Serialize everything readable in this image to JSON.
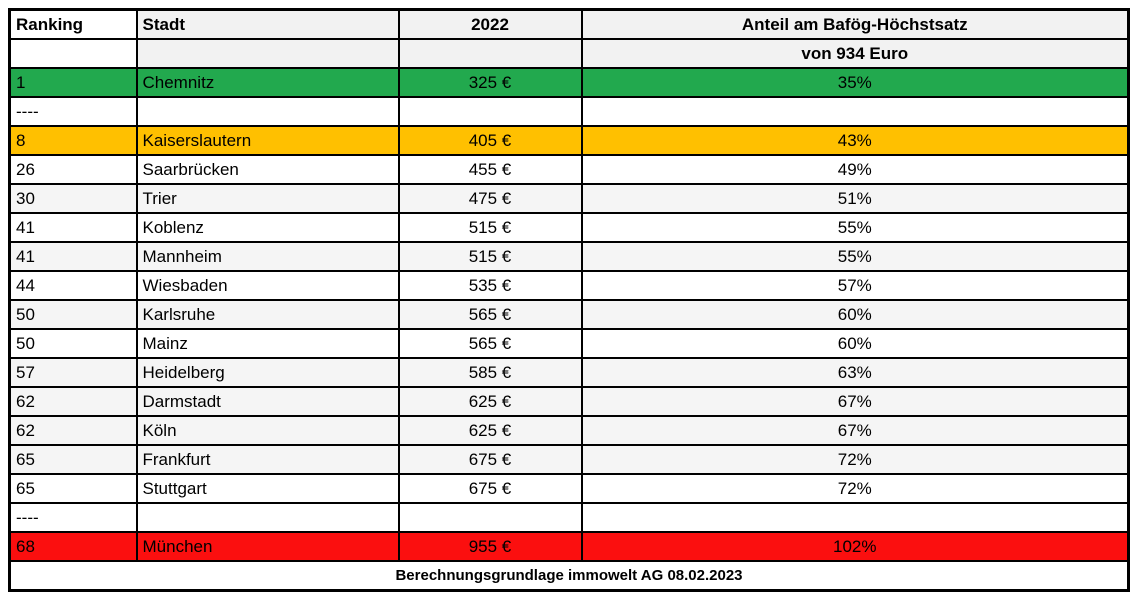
{
  "colors": {
    "green": "#22A94E",
    "orange": "#FFC000",
    "red": "#FB0F0F",
    "shaded": "#F5F5F5",
    "header_shaded": "#F2F2F2",
    "border": "#000000"
  },
  "table": {
    "columns": [
      {
        "key": "ranking",
        "label": "Ranking"
      },
      {
        "key": "stadt",
        "label": "Stadt"
      },
      {
        "key": "rent",
        "label": "2022"
      },
      {
        "key": "share",
        "label": "Anteil am Bafög-Höchstsatz"
      }
    ],
    "subheader_anteil": "von 934 Euro",
    "rows": [
      {
        "ranking": "1",
        "stadt": "Chemnitz",
        "rent": "325 €",
        "share": "35%",
        "highlight": "green"
      },
      {
        "ranking": "----",
        "stadt": "",
        "rent": "",
        "share": ""
      },
      {
        "ranking": "8",
        "stadt": "Kaiserslautern",
        "rent": "405 €",
        "share": "43%",
        "highlight": "orange"
      },
      {
        "ranking": "26",
        "stadt": "Saarbrücken",
        "rent": "455 €",
        "share": "49%"
      },
      {
        "ranking": "30",
        "stadt": "Trier",
        "rent": "475 €",
        "share": "51%",
        "shaded": true
      },
      {
        "ranking": "41",
        "stadt": "Koblenz",
        "rent": "515 €",
        "share": "55%"
      },
      {
        "ranking": "41",
        "stadt": "Mannheim",
        "rent": "515 €",
        "share": "55%",
        "shaded": true
      },
      {
        "ranking": "44",
        "stadt": "Wiesbaden",
        "rent": "535 €",
        "share": "57%"
      },
      {
        "ranking": "50",
        "stadt": "Karlsruhe",
        "rent": "565 €",
        "share": "60%",
        "shaded": true
      },
      {
        "ranking": "50",
        "stadt": "Mainz",
        "rent": "565 €",
        "share": "60%"
      },
      {
        "ranking": "57",
        "stadt": "Heidelberg",
        "rent": "585 €",
        "share": "63%",
        "shaded": true
      },
      {
        "ranking": "62",
        "stadt": "Darmstadt",
        "rent": "625 €",
        "share": "67%",
        "shaded": true
      },
      {
        "ranking": "62",
        "stadt": "Köln",
        "rent": "625 €",
        "share": "67%",
        "shaded": true
      },
      {
        "ranking": "65",
        "stadt": "Frankfurt",
        "rent": "675 €",
        "share": "72%",
        "shaded": true
      },
      {
        "ranking": "65",
        "stadt": "Stuttgart",
        "rent": "675 €",
        "share": "72%"
      },
      {
        "ranking": "----",
        "stadt": "",
        "rent": "",
        "share": ""
      },
      {
        "ranking": "68",
        "stadt": "München",
        "rent": "955 €",
        "share": "102%",
        "highlight": "red"
      }
    ],
    "footer": "Berechnungsgrundlage immowelt AG 08.02.2023"
  },
  "chart_data": {
    "type": "table",
    "title": "Anteil am Bafög-Höchstsatz von 934 Euro",
    "columns": [
      "Ranking",
      "Stadt",
      "2022",
      "Anteil am Bafög-Höchstsatz von 934 Euro"
    ],
    "rows": [
      [
        1,
        "Chemnitz",
        "325 €",
        "35%"
      ],
      [
        8,
        "Kaiserslautern",
        "405 €",
        "43%"
      ],
      [
        26,
        "Saarbrücken",
        "455 €",
        "49%"
      ],
      [
        30,
        "Trier",
        "475 €",
        "51%"
      ],
      [
        41,
        "Koblenz",
        "515 €",
        "55%"
      ],
      [
        41,
        "Mannheim",
        "515 €",
        "55%"
      ],
      [
        44,
        "Wiesbaden",
        "535 €",
        "57%"
      ],
      [
        50,
        "Karlsruhe",
        "565 €",
        "60%"
      ],
      [
        50,
        "Mainz",
        "565 €",
        "60%"
      ],
      [
        57,
        "Heidelberg",
        "585 €",
        "63%"
      ],
      [
        62,
        "Darmstadt",
        "625 €",
        "67%"
      ],
      [
        62,
        "Köln",
        "625 €",
        "67%"
      ],
      [
        65,
        "Frankfurt",
        "675 €",
        "72%"
      ],
      [
        65,
        "Stuttgart",
        "675 €",
        "72%"
      ],
      [
        68,
        "München",
        "955 €",
        "102%"
      ]
    ],
    "source_note": "Berechnungsgrundlage immowelt AG 08.02.2023"
  }
}
